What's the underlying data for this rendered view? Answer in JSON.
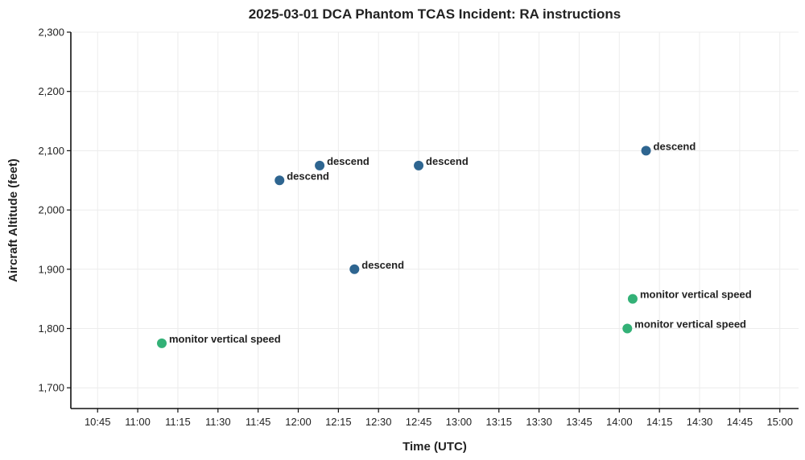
{
  "chart_data": {
    "type": "scatter",
    "title": "2025-03-01 DCA Phantom TCAS Incident: RA instructions",
    "xlabel": "Time (UTC)",
    "ylabel": "Aircraft Altitude (feet)",
    "x_range_minutes": [
      635,
      907
    ],
    "ylim": [
      1665,
      2300
    ],
    "grid": true,
    "x_ticks": [
      {
        "minutes": 645,
        "label": "10:45"
      },
      {
        "minutes": 660,
        "label": "11:00"
      },
      {
        "minutes": 675,
        "label": "11:15"
      },
      {
        "minutes": 690,
        "label": "11:30"
      },
      {
        "minutes": 705,
        "label": "11:45"
      },
      {
        "minutes": 720,
        "label": "12:00"
      },
      {
        "minutes": 735,
        "label": "12:15"
      },
      {
        "minutes": 750,
        "label": "12:30"
      },
      {
        "minutes": 765,
        "label": "12:45"
      },
      {
        "minutes": 780,
        "label": "13:00"
      },
      {
        "minutes": 795,
        "label": "13:15"
      },
      {
        "minutes": 810,
        "label": "13:30"
      },
      {
        "minutes": 825,
        "label": "13:45"
      },
      {
        "minutes": 840,
        "label": "14:00"
      },
      {
        "minutes": 855,
        "label": "14:15"
      },
      {
        "minutes": 870,
        "label": "14:30"
      },
      {
        "minutes": 885,
        "label": "14:45"
      },
      {
        "minutes": 900,
        "label": "15:00"
      }
    ],
    "y_ticks": [
      {
        "value": 1700,
        "label": "1,700"
      },
      {
        "value": 1800,
        "label": "1,800"
      },
      {
        "value": 1900,
        "label": "1,900"
      },
      {
        "value": 2000,
        "label": "2,000"
      },
      {
        "value": 2100,
        "label": "2,100"
      },
      {
        "value": 2200,
        "label": "2,200"
      },
      {
        "value": 2300,
        "label": "2,300"
      }
    ],
    "colors": {
      "descend": "#2e6590",
      "monitor vertical speed": "#33b177"
    },
    "points": [
      {
        "time": "11:09",
        "minutes": 669,
        "altitude": 1775,
        "label": "monitor vertical speed"
      },
      {
        "time": "11:53",
        "minutes": 713,
        "altitude": 2050,
        "label": "descend"
      },
      {
        "time": "12:08",
        "minutes": 728,
        "altitude": 2075,
        "label": "descend"
      },
      {
        "time": "12:21",
        "minutes": 741,
        "altitude": 1900,
        "label": "descend"
      },
      {
        "time": "12:45",
        "minutes": 765,
        "altitude": 2075,
        "label": "descend"
      },
      {
        "time": "14:03",
        "minutes": 843,
        "altitude": 1800,
        "label": "monitor vertical speed"
      },
      {
        "time": "14:05",
        "minutes": 845,
        "altitude": 1850,
        "label": "monitor vertical speed"
      },
      {
        "time": "14:10",
        "minutes": 850,
        "altitude": 2100,
        "label": "descend"
      }
    ]
  }
}
